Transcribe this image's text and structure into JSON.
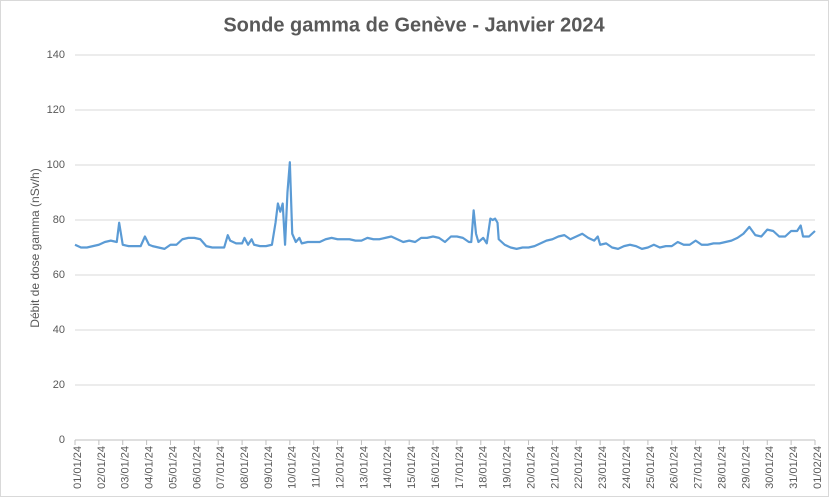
{
  "chart_data": {
    "type": "line",
    "title": "Sonde gamma de Genève - Janvier 2024",
    "y_label": "Débit de dose gamma (nSv/h)",
    "color": "#5b9bd5",
    "grid": true,
    "ylim": [
      0,
      140
    ],
    "yticks": [
      0,
      20,
      40,
      60,
      80,
      100,
      120,
      140
    ],
    "xlim": [
      0,
      31
    ],
    "xticks": [
      {
        "value": 0,
        "label": "01/01/24"
      },
      {
        "value": 1,
        "label": "02/01/24"
      },
      {
        "value": 2,
        "label": "03/01/24"
      },
      {
        "value": 3,
        "label": "04/01/24"
      },
      {
        "value": 4,
        "label": "05/01/24"
      },
      {
        "value": 5,
        "label": "06/01/24"
      },
      {
        "value": 6,
        "label": "07/01/24"
      },
      {
        "value": 7,
        "label": "08/01/24"
      },
      {
        "value": 8,
        "label": "09/01/24"
      },
      {
        "value": 9,
        "label": "10/01/24"
      },
      {
        "value": 10,
        "label": "11/01/24"
      },
      {
        "value": 11,
        "label": "12/01/24"
      },
      {
        "value": 12,
        "label": "13/01/24"
      },
      {
        "value": 13,
        "label": "14/01/24"
      },
      {
        "value": 14,
        "label": "15/01/24"
      },
      {
        "value": 15,
        "label": "16/01/24"
      },
      {
        "value": 16,
        "label": "17/01/24"
      },
      {
        "value": 17,
        "label": "18/01/24"
      },
      {
        "value": 18,
        "label": "19/01/24"
      },
      {
        "value": 19,
        "label": "20/01/24"
      },
      {
        "value": 20,
        "label": "21/01/24"
      },
      {
        "value": 21,
        "label": "22/01/24"
      },
      {
        "value": 22,
        "label": "23/01/24"
      },
      {
        "value": 23,
        "label": "24/01/24"
      },
      {
        "value": 24,
        "label": "25/01/24"
      },
      {
        "value": 25,
        "label": "26/01/24"
      },
      {
        "value": 26,
        "label": "27/01/24"
      },
      {
        "value": 27,
        "label": "28/01/24"
      },
      {
        "value": 28,
        "label": "29/01/24"
      },
      {
        "value": 29,
        "label": "30/01/24"
      },
      {
        "value": 30,
        "label": "31/01/24"
      },
      {
        "value": 31,
        "label": "01/02/24"
      }
    ],
    "x": [
      0,
      0.25,
      0.5,
      0.75,
      1,
      1.25,
      1.5,
      1.75,
      1.85,
      2,
      2.25,
      2.5,
      2.75,
      2.93,
      3.1,
      3.25,
      3.5,
      3.75,
      4,
      4.25,
      4.5,
      4.75,
      5,
      5.25,
      5.5,
      5.75,
      6,
      6.25,
      6.4,
      6.5,
      6.75,
      7,
      7.1,
      7.25,
      7.4,
      7.5,
      7.75,
      8,
      8.25,
      8.4,
      8.5,
      8.6,
      8.7,
      8.8,
      8.9,
      9,
      9.1,
      9.25,
      9.4,
      9.5,
      9.75,
      10,
      10.25,
      10.5,
      10.75,
      11,
      11.25,
      11.5,
      11.75,
      12,
      12.25,
      12.5,
      12.75,
      13,
      13.25,
      13.5,
      13.75,
      14,
      14.25,
      14.5,
      14.75,
      15,
      15.25,
      15.5,
      15.75,
      16,
      16.25,
      16.5,
      16.6,
      16.7,
      16.8,
      16.9,
      17.1,
      17.25,
      17.4,
      17.5,
      17.6,
      17.7,
      17.75,
      18,
      18.25,
      18.5,
      18.75,
      19,
      19.25,
      19.5,
      19.75,
      20,
      20.25,
      20.5,
      20.75,
      21,
      21.25,
      21.5,
      21.75,
      21.9,
      22,
      22.25,
      22.5,
      22.75,
      23,
      23.25,
      23.5,
      23.75,
      24,
      24.25,
      24.5,
      24.75,
      25,
      25.25,
      25.5,
      25.75,
      26,
      26.25,
      26.5,
      26.75,
      27,
      27.25,
      27.5,
      27.75,
      28,
      28.25,
      28.5,
      28.75,
      29,
      29.25,
      29.5,
      29.75,
      30,
      30.25,
      30.4,
      30.5,
      30.75,
      31
    ],
    "values": [
      71,
      70,
      70,
      70.5,
      71,
      72,
      72.5,
      72,
      79,
      71,
      70.5,
      70.5,
      70.5,
      74,
      71,
      70.5,
      70,
      69.5,
      71,
      71,
      73,
      73.5,
      73.5,
      73,
      70.5,
      70,
      70,
      70,
      74.5,
      72.5,
      71.5,
      71.5,
      73.5,
      71,
      73,
      71,
      70.5,
      70.5,
      71,
      79,
      86,
      83,
      86,
      71,
      90,
      101,
      75,
      72,
      73.5,
      71.5,
      72,
      72,
      72,
      73,
      73.5,
      73,
      73,
      73,
      72.5,
      72.5,
      73.5,
      73,
      73,
      73.5,
      74,
      73,
      72,
      72.5,
      72,
      73.5,
      73.5,
      74,
      73.5,
      72,
      74,
      74,
      73.5,
      72,
      72,
      83.5,
      75,
      72,
      73.5,
      71.5,
      80.5,
      80,
      80.5,
      79,
      73,
      71,
      70,
      69.5,
      70,
      70,
      70.5,
      71.5,
      72.5,
      73,
      74,
      74.5,
      73,
      74,
      75,
      73.5,
      72.5,
      74,
      71,
      71.5,
      70,
      69.5,
      70.5,
      71,
      70.5,
      69.5,
      70,
      71,
      70,
      70.5,
      70.5,
      72,
      71,
      71,
      72.5,
      71,
      71,
      71.5,
      71.5,
      72,
      72.5,
      73.5,
      75,
      77.5,
      74.5,
      74,
      76.5,
      76,
      74,
      74,
      76,
      76,
      78,
      74,
      74,
      76
    ]
  }
}
